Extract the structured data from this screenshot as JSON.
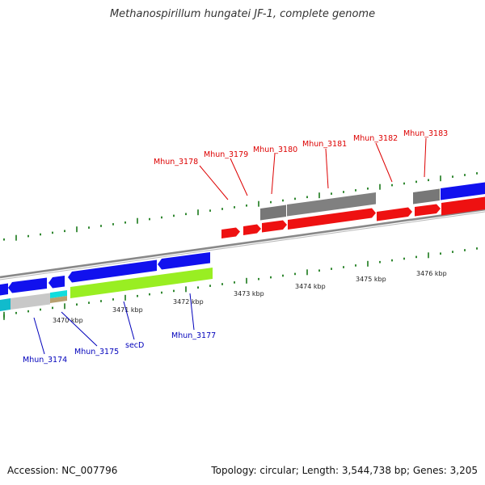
{
  "title": "Methanospirillum hungatei JF-1, complete genome",
  "footer": {
    "accession": "Accession: NC_007796",
    "summary": "Topology: circular; Length: 3,544,738 bp; Genes: 3,205"
  },
  "colors": {
    "forward_label": "#dd0000",
    "reverse_label": "#0000bb",
    "tick": "#1a7a1a",
    "backbone": "#888888"
  },
  "axis_labels": [
    "3470 kbp",
    "3471 kbp",
    "3472 kbp",
    "3473 kbp",
    "3474 kbp",
    "3475 kbp",
    "3476 kbp"
  ],
  "forward_genes": [
    "Mhun_3178",
    "Mhun_3179",
    "Mhun_3180",
    "Mhun_3181",
    "Mhun_3182",
    "Mhun_3183"
  ],
  "reverse_genes": [
    "Mhun_3174",
    "Mhun_3175",
    "secD",
    "Mhun_3177"
  ]
}
